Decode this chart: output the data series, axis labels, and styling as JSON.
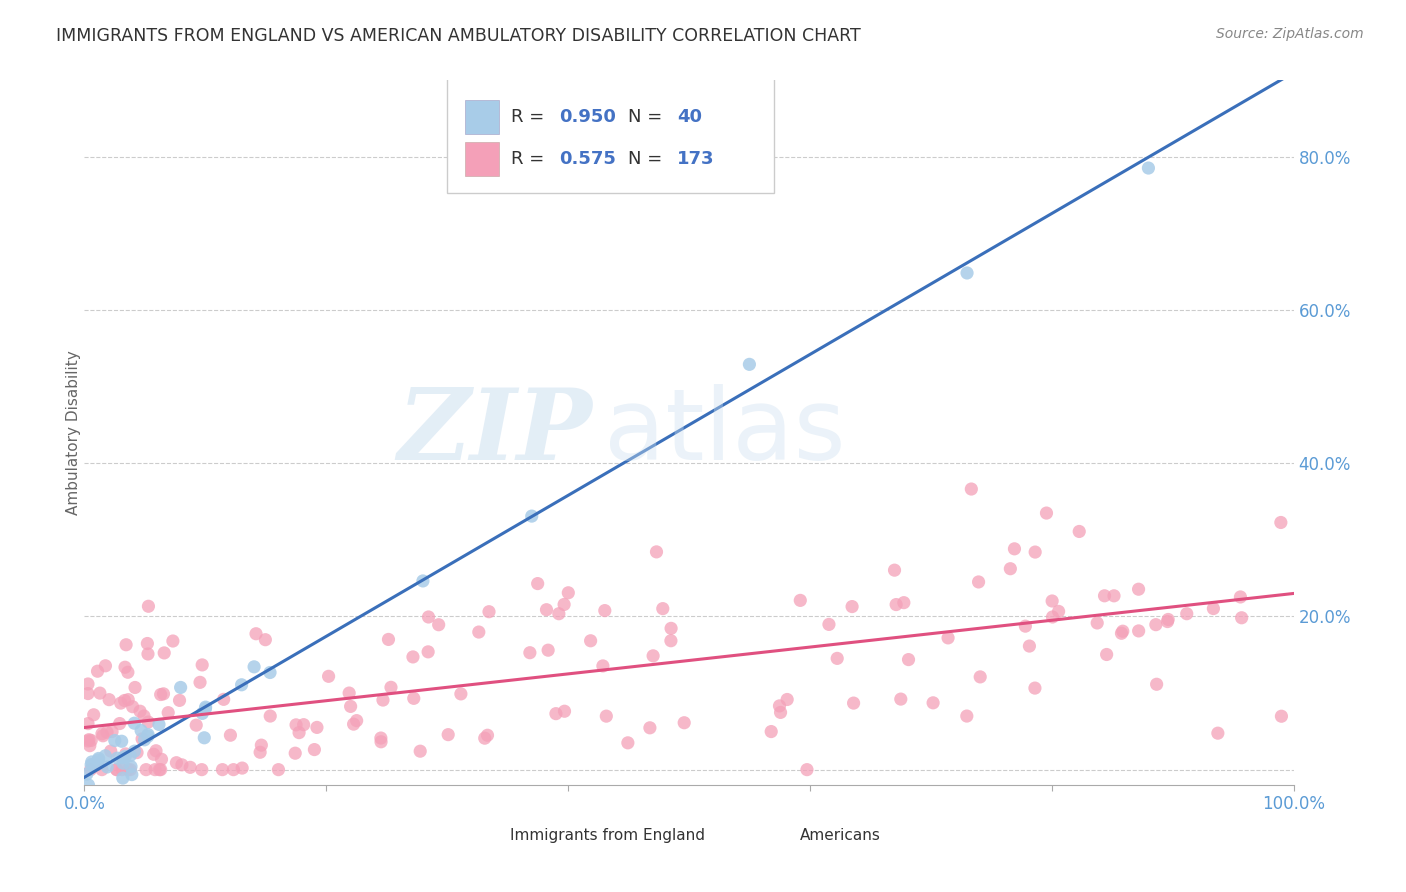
{
  "title": "IMMIGRANTS FROM ENGLAND VS AMERICAN AMBULATORY DISABILITY CORRELATION CHART",
  "source": "Source: ZipAtlas.com",
  "ylabel": "Ambulatory Disability",
  "y_ticks": [
    0.0,
    0.2,
    0.4,
    0.6,
    0.8
  ],
  "y_tick_labels": [
    "",
    "20.0%",
    "40.0%",
    "60.0%",
    "80.0%"
  ],
  "x_range": [
    0.0,
    1.0
  ],
  "y_range": [
    0.0,
    0.9
  ],
  "blue_R": 0.95,
  "blue_N": 40,
  "pink_R": 0.575,
  "pink_N": 173,
  "blue_color": "#a8cce8",
  "pink_color": "#f4a0b8",
  "blue_line_color": "#3a6fba",
  "pink_line_color": "#e05080",
  "watermark_zip": "ZIP",
  "watermark_atlas": "atlas",
  "background_color": "#ffffff",
  "grid_color": "#cccccc",
  "legend_label_blue": "Immigrants from England",
  "legend_label_pink": "Americans",
  "title_color": "#333333",
  "source_color": "#888888",
  "tick_color_y": "#5b9bd5",
  "tick_color_x": "#5b9bd5",
  "axis_color": "#aaaaaa",
  "blue_line_slope": 0.92,
  "blue_line_intercept": -0.01,
  "pink_line_slope": 0.175,
  "pink_line_intercept": 0.055
}
